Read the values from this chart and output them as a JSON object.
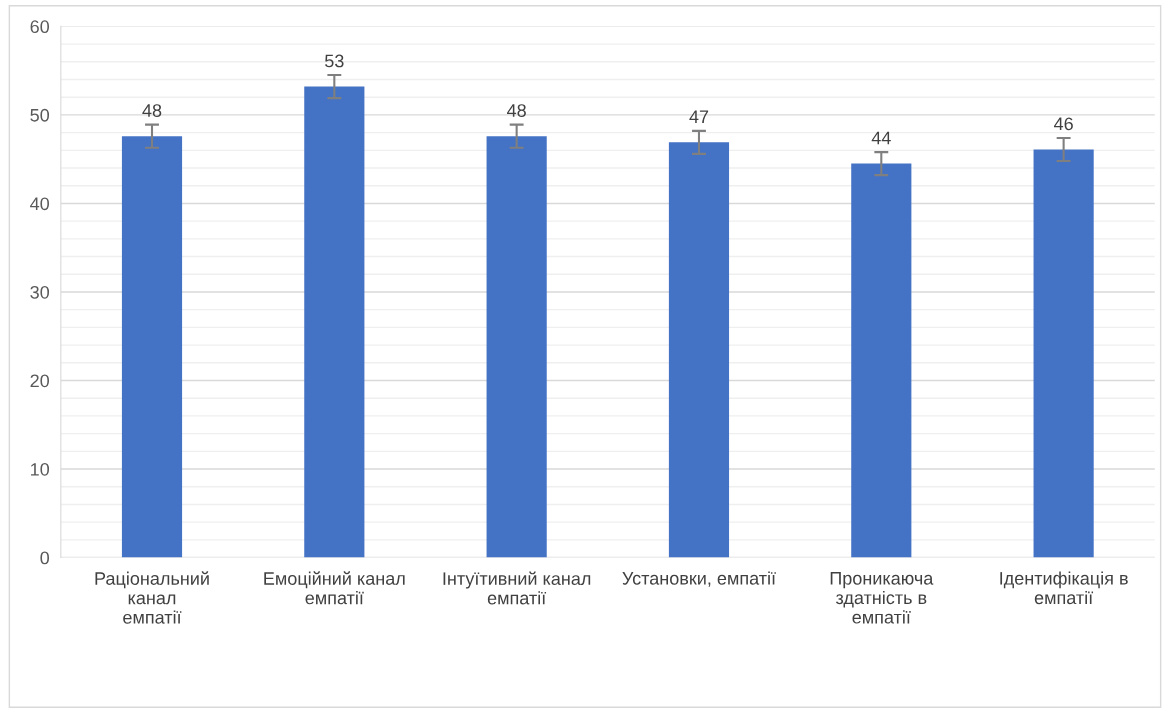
{
  "chart_data": {
    "type": "bar",
    "categories": [
      "Раціональний канал емпатії",
      "Емоційний канал емпатії",
      "Інтуїтивний канал емпатії",
      "Установки, емпатії",
      "Проникаюча здатність в емпатії",
      "Ідентифікація в емпатії"
    ],
    "values": [
      47.6,
      53.2,
      47.6,
      46.9,
      44.5,
      46.1
    ],
    "value_labels": [
      "48",
      "53",
      "48",
      "47",
      "44",
      "46"
    ],
    "errors": [
      1.3,
      1.3,
      1.3,
      1.3,
      1.3,
      1.3
    ],
    "color": "#4472c4",
    "ylim": [
      0,
      60
    ],
    "yticks": [
      0,
      {
        "value": 2,
        "label": null
      },
      {
        "value": 4,
        "label": null
      },
      {
        "value": 6,
        "label": null
      },
      {
        "value": 8,
        "label": null
      },
      10,
      {
        "value": 12,
        "label": null
      },
      {
        "value": 14,
        "label": null
      },
      {
        "value": 16,
        "label": null
      },
      {
        "value": 18,
        "label": null
      },
      20,
      {
        "value": 22,
        "label": null
      },
      {
        "value": 24,
        "label": null
      },
      {
        "value": 26,
        "label": null
      },
      {
        "value": 28,
        "label": null
      },
      30,
      {
        "value": 32,
        "label": null
      },
      {
        "value": 34,
        "label": null
      },
      {
        "value": 36,
        "label": null
      },
      {
        "value": 38,
        "label": null
      },
      40,
      {
        "value": 42,
        "label": null
      },
      {
        "value": 44,
        "label": null
      },
      {
        "value": 46,
        "label": null
      },
      {
        "value": 48,
        "label": null
      },
      50,
      {
        "value": 52,
        "label": null
      },
      {
        "value": 54,
        "label": null
      },
      {
        "value": 56,
        "label": null
      },
      {
        "value": 58,
        "label": null
      },
      60
    ],
    "grid": "y"
  }
}
